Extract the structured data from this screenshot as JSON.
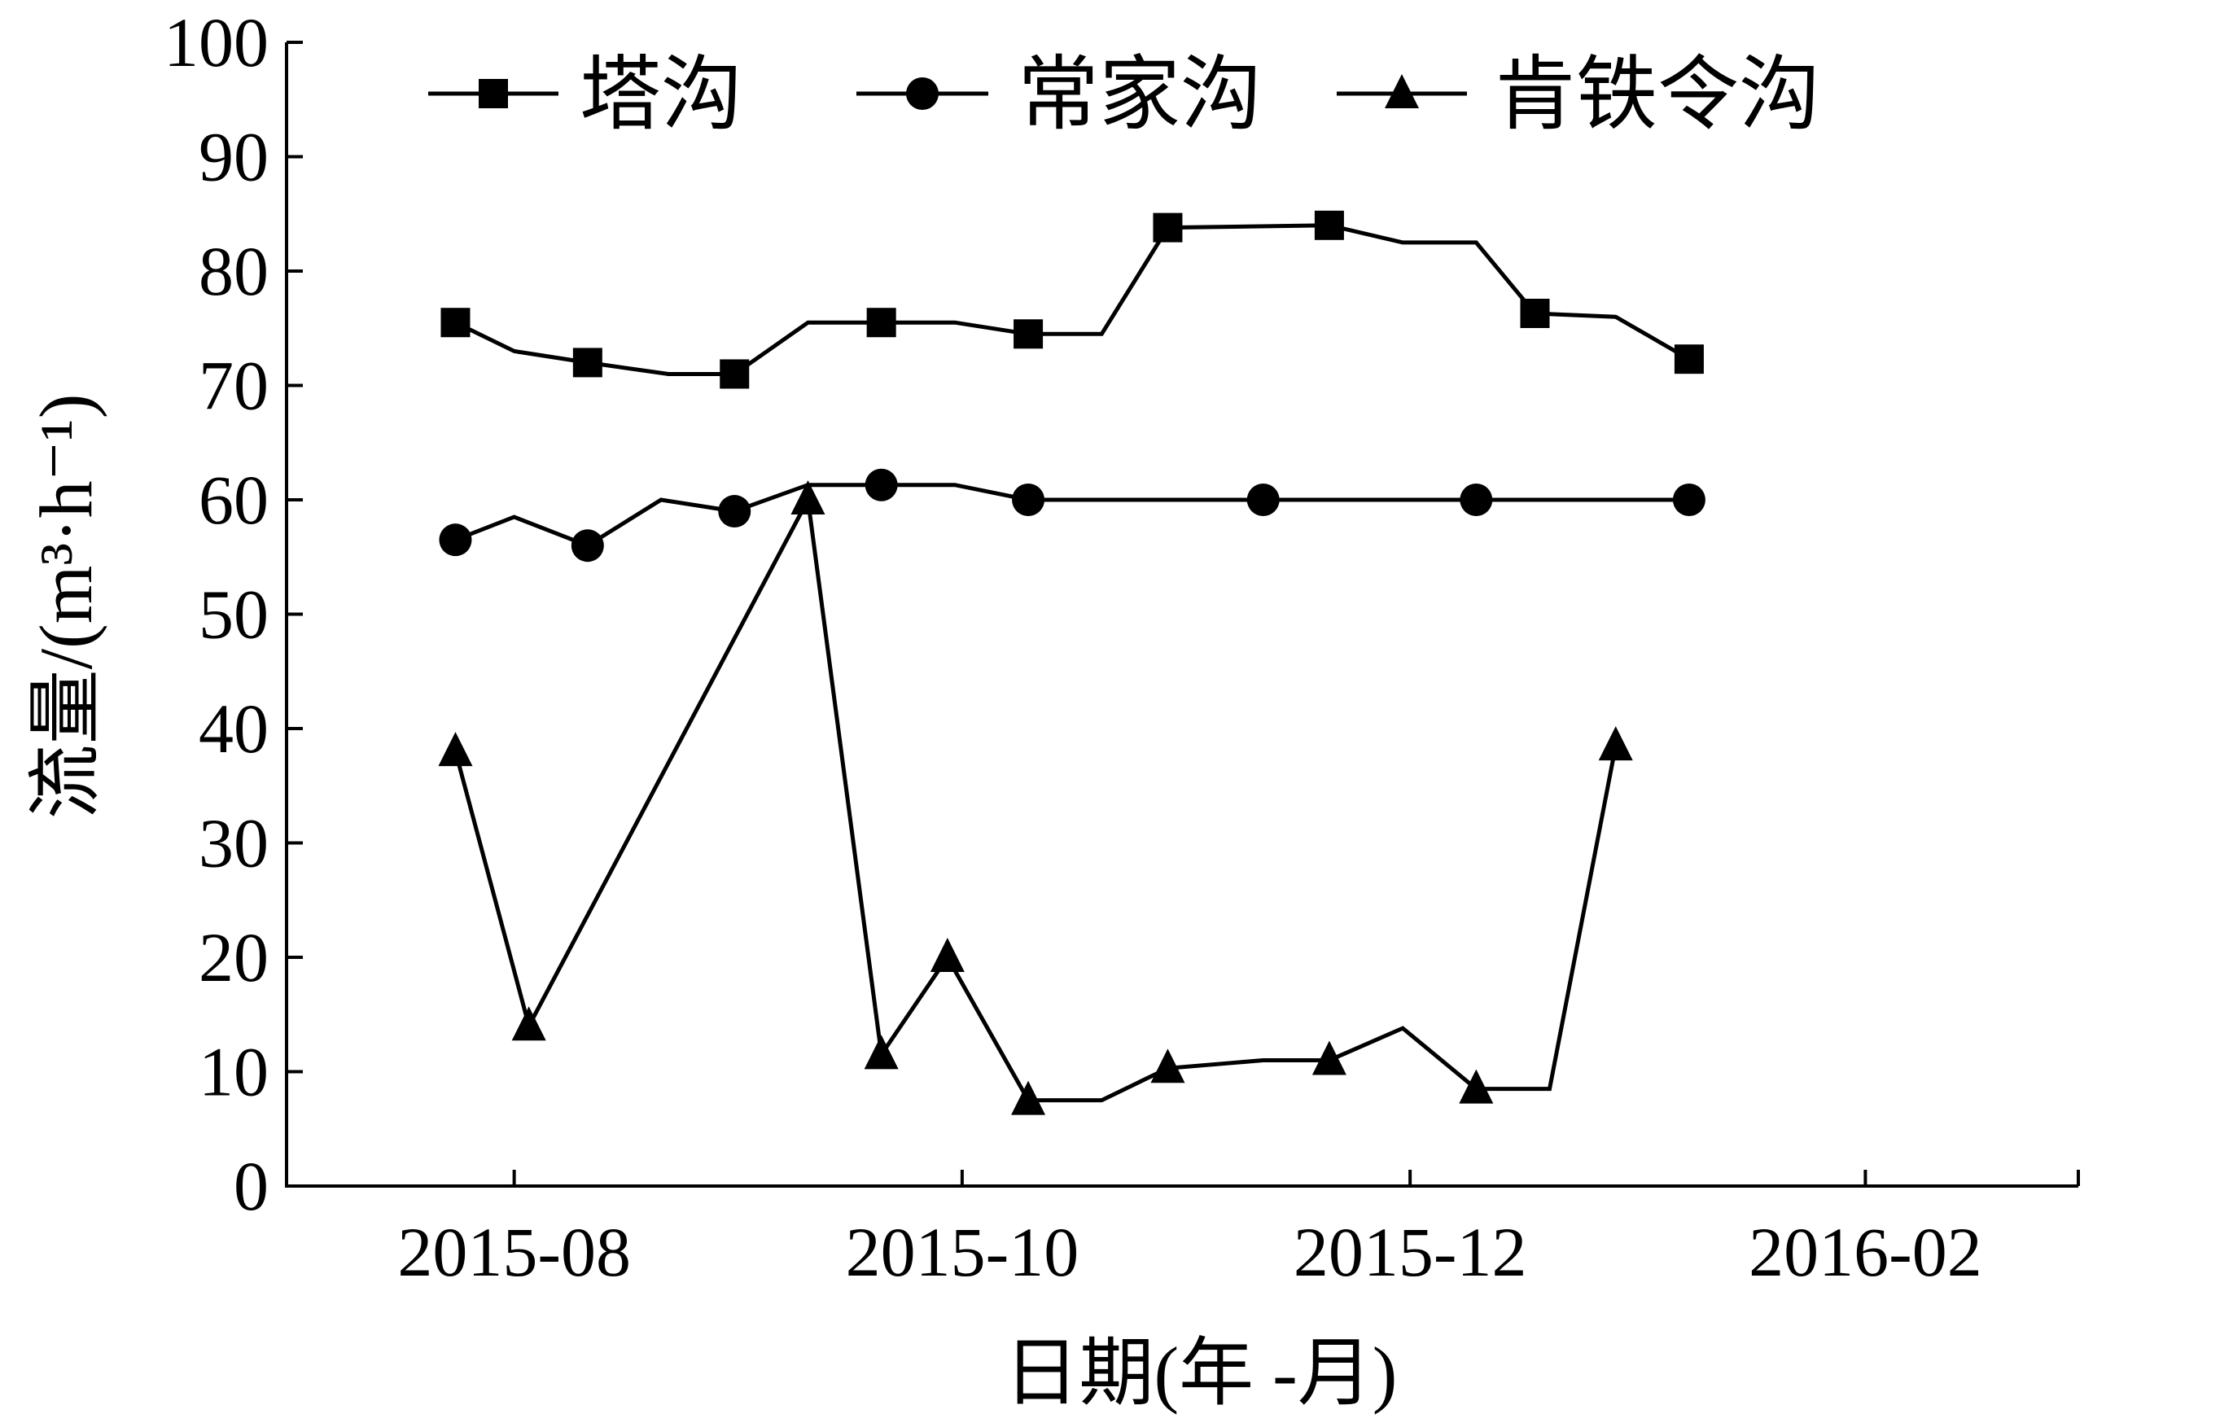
{
  "chart_data": {
    "type": "line",
    "title": "",
    "xlabel": "日期(年 -月)",
    "ylabel": "流量/(m³·h⁻¹)",
    "ylim": [
      0,
      100
    ],
    "yticks": [
      "0",
      "10",
      "20",
      "30",
      "40",
      "50",
      "60",
      "70",
      "80",
      "90",
      "100"
    ],
    "xticks": [
      "2015-08",
      "2015-10",
      "2015-12",
      "2016-02"
    ],
    "xrange": [
      "2015-07",
      "2016-03"
    ],
    "legend_position": "top",
    "series": [
      {
        "name": "塔沟",
        "marker": "square",
        "points": [
          {
            "x": "2015-07-24",
            "y": 75.5,
            "marker": true
          },
          {
            "x": "2015-08-01",
            "y": 73.0,
            "marker": false
          },
          {
            "x": "2015-08-11",
            "y": 72.0,
            "marker": true
          },
          {
            "x": "2015-08-22",
            "y": 71.0,
            "marker": false
          },
          {
            "x": "2015-08-31",
            "y": 71.0,
            "marker": true
          },
          {
            "x": "2015-09-10",
            "y": 75.5,
            "marker": false
          },
          {
            "x": "2015-09-20",
            "y": 75.5,
            "marker": true
          },
          {
            "x": "2015-09-30",
            "y": 75.5,
            "marker": false
          },
          {
            "x": "2015-10-10",
            "y": 74.5,
            "marker": true
          },
          {
            "x": "2015-10-20",
            "y": 74.5,
            "marker": false
          },
          {
            "x": "2015-10-29",
            "y": 83.8,
            "marker": true
          },
          {
            "x": "2015-11-20",
            "y": 84.0,
            "marker": true
          },
          {
            "x": "2015-11-30",
            "y": 82.5,
            "marker": false
          },
          {
            "x": "2015-12-10",
            "y": 82.5,
            "marker": false
          },
          {
            "x": "2015-12-18",
            "y": 76.3,
            "marker": true
          },
          {
            "x": "2015-12-29",
            "y": 76.0,
            "marker": false
          },
          {
            "x": "2016-01-08",
            "y": 72.3,
            "marker": true
          }
        ]
      },
      {
        "name": "常家沟",
        "marker": "circle",
        "points": [
          {
            "x": "2015-07-24",
            "y": 56.5,
            "marker": true
          },
          {
            "x": "2015-08-01",
            "y": 58.5,
            "marker": false
          },
          {
            "x": "2015-08-11",
            "y": 56.0,
            "marker": true
          },
          {
            "x": "2015-08-21",
            "y": 60.0,
            "marker": false
          },
          {
            "x": "2015-08-31",
            "y": 59.0,
            "marker": true
          },
          {
            "x": "2015-09-10",
            "y": 61.3,
            "marker": false
          },
          {
            "x": "2015-09-20",
            "y": 61.3,
            "marker": true
          },
          {
            "x": "2015-09-30",
            "y": 61.3,
            "marker": false
          },
          {
            "x": "2015-10-10",
            "y": 60.0,
            "marker": true
          },
          {
            "x": "2015-11-11",
            "y": 60.0,
            "marker": true
          },
          {
            "x": "2015-12-10",
            "y": 60.0,
            "marker": true
          },
          {
            "x": "2016-01-08",
            "y": 60.0,
            "marker": true
          }
        ]
      },
      {
        "name": "肯铁令沟",
        "marker": "triangle",
        "points": [
          {
            "x": "2015-07-24",
            "y": 38.0,
            "marker": true
          },
          {
            "x": "2015-08-03",
            "y": 14.0,
            "marker": true
          },
          {
            "x": "2015-09-10",
            "y": 60.0,
            "marker": true
          },
          {
            "x": "2015-09-20",
            "y": 11.5,
            "marker": true
          },
          {
            "x": "2015-09-29",
            "y": 20.0,
            "marker": true
          },
          {
            "x": "2015-10-10",
            "y": 7.5,
            "marker": true
          },
          {
            "x": "2015-10-20",
            "y": 7.5,
            "marker": false
          },
          {
            "x": "2015-10-29",
            "y": 10.3,
            "marker": true
          },
          {
            "x": "2015-11-11",
            "y": 11.0,
            "marker": false
          },
          {
            "x": "2015-11-20",
            "y": 11.0,
            "marker": true
          },
          {
            "x": "2015-11-30",
            "y": 13.8,
            "marker": false
          },
          {
            "x": "2015-12-10",
            "y": 8.5,
            "marker": true
          },
          {
            "x": "2015-12-20",
            "y": 8.5,
            "marker": false
          },
          {
            "x": "2015-12-29",
            "y": 38.5,
            "marker": true
          }
        ]
      }
    ]
  }
}
